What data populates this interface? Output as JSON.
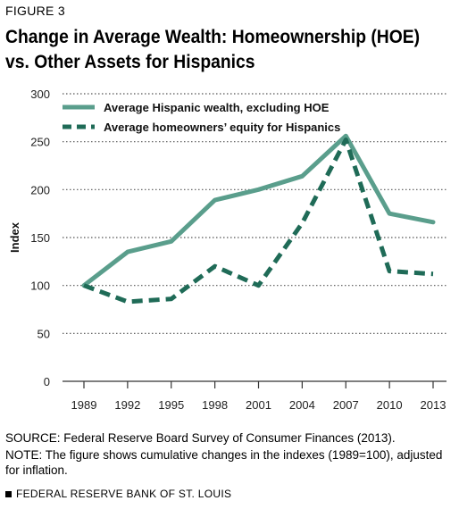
{
  "figure_label": "FIGURE 3",
  "title_line1": "Change in Average Wealth: Homeownership (HOE)",
  "title_line2": "vs. Other Assets for Hispanics",
  "source": "SOURCE: Federal Reserve Board Survey of Consumer Finances (2013).",
  "note_line1": "NOTE: The figure shows cumulative changes in the indexes (1989=100), adjusted",
  "note_line2": "for inflation.",
  "footer": "FEDERAL RESERVE BANK OF ST. LOUIS",
  "chart_data": {
    "type": "line",
    "categories": [
      "1989",
      "1992",
      "1995",
      "1998",
      "2001",
      "2004",
      "2007",
      "2010",
      "2013"
    ],
    "series": [
      {
        "name": "Average Hispanic wealth, excluding HOE",
        "values": [
          100,
          135,
          146,
          189,
          200,
          214,
          256,
          175,
          166
        ],
        "color": "#5a9e8c",
        "style": "solid"
      },
      {
        "name": "Average homeowners’ equity for Hispanics",
        "values": [
          100,
          83,
          86,
          120,
          100,
          165,
          252,
          115,
          112
        ],
        "color": "#1f6b57",
        "style": "dashed"
      }
    ],
    "ylabel": "Index",
    "xlabel": "",
    "ylim": [
      0,
      300
    ],
    "yticks": [
      0,
      50,
      100,
      150,
      200,
      250,
      300
    ],
    "grid": "horizontal dotted",
    "legend_position": "top-left"
  }
}
